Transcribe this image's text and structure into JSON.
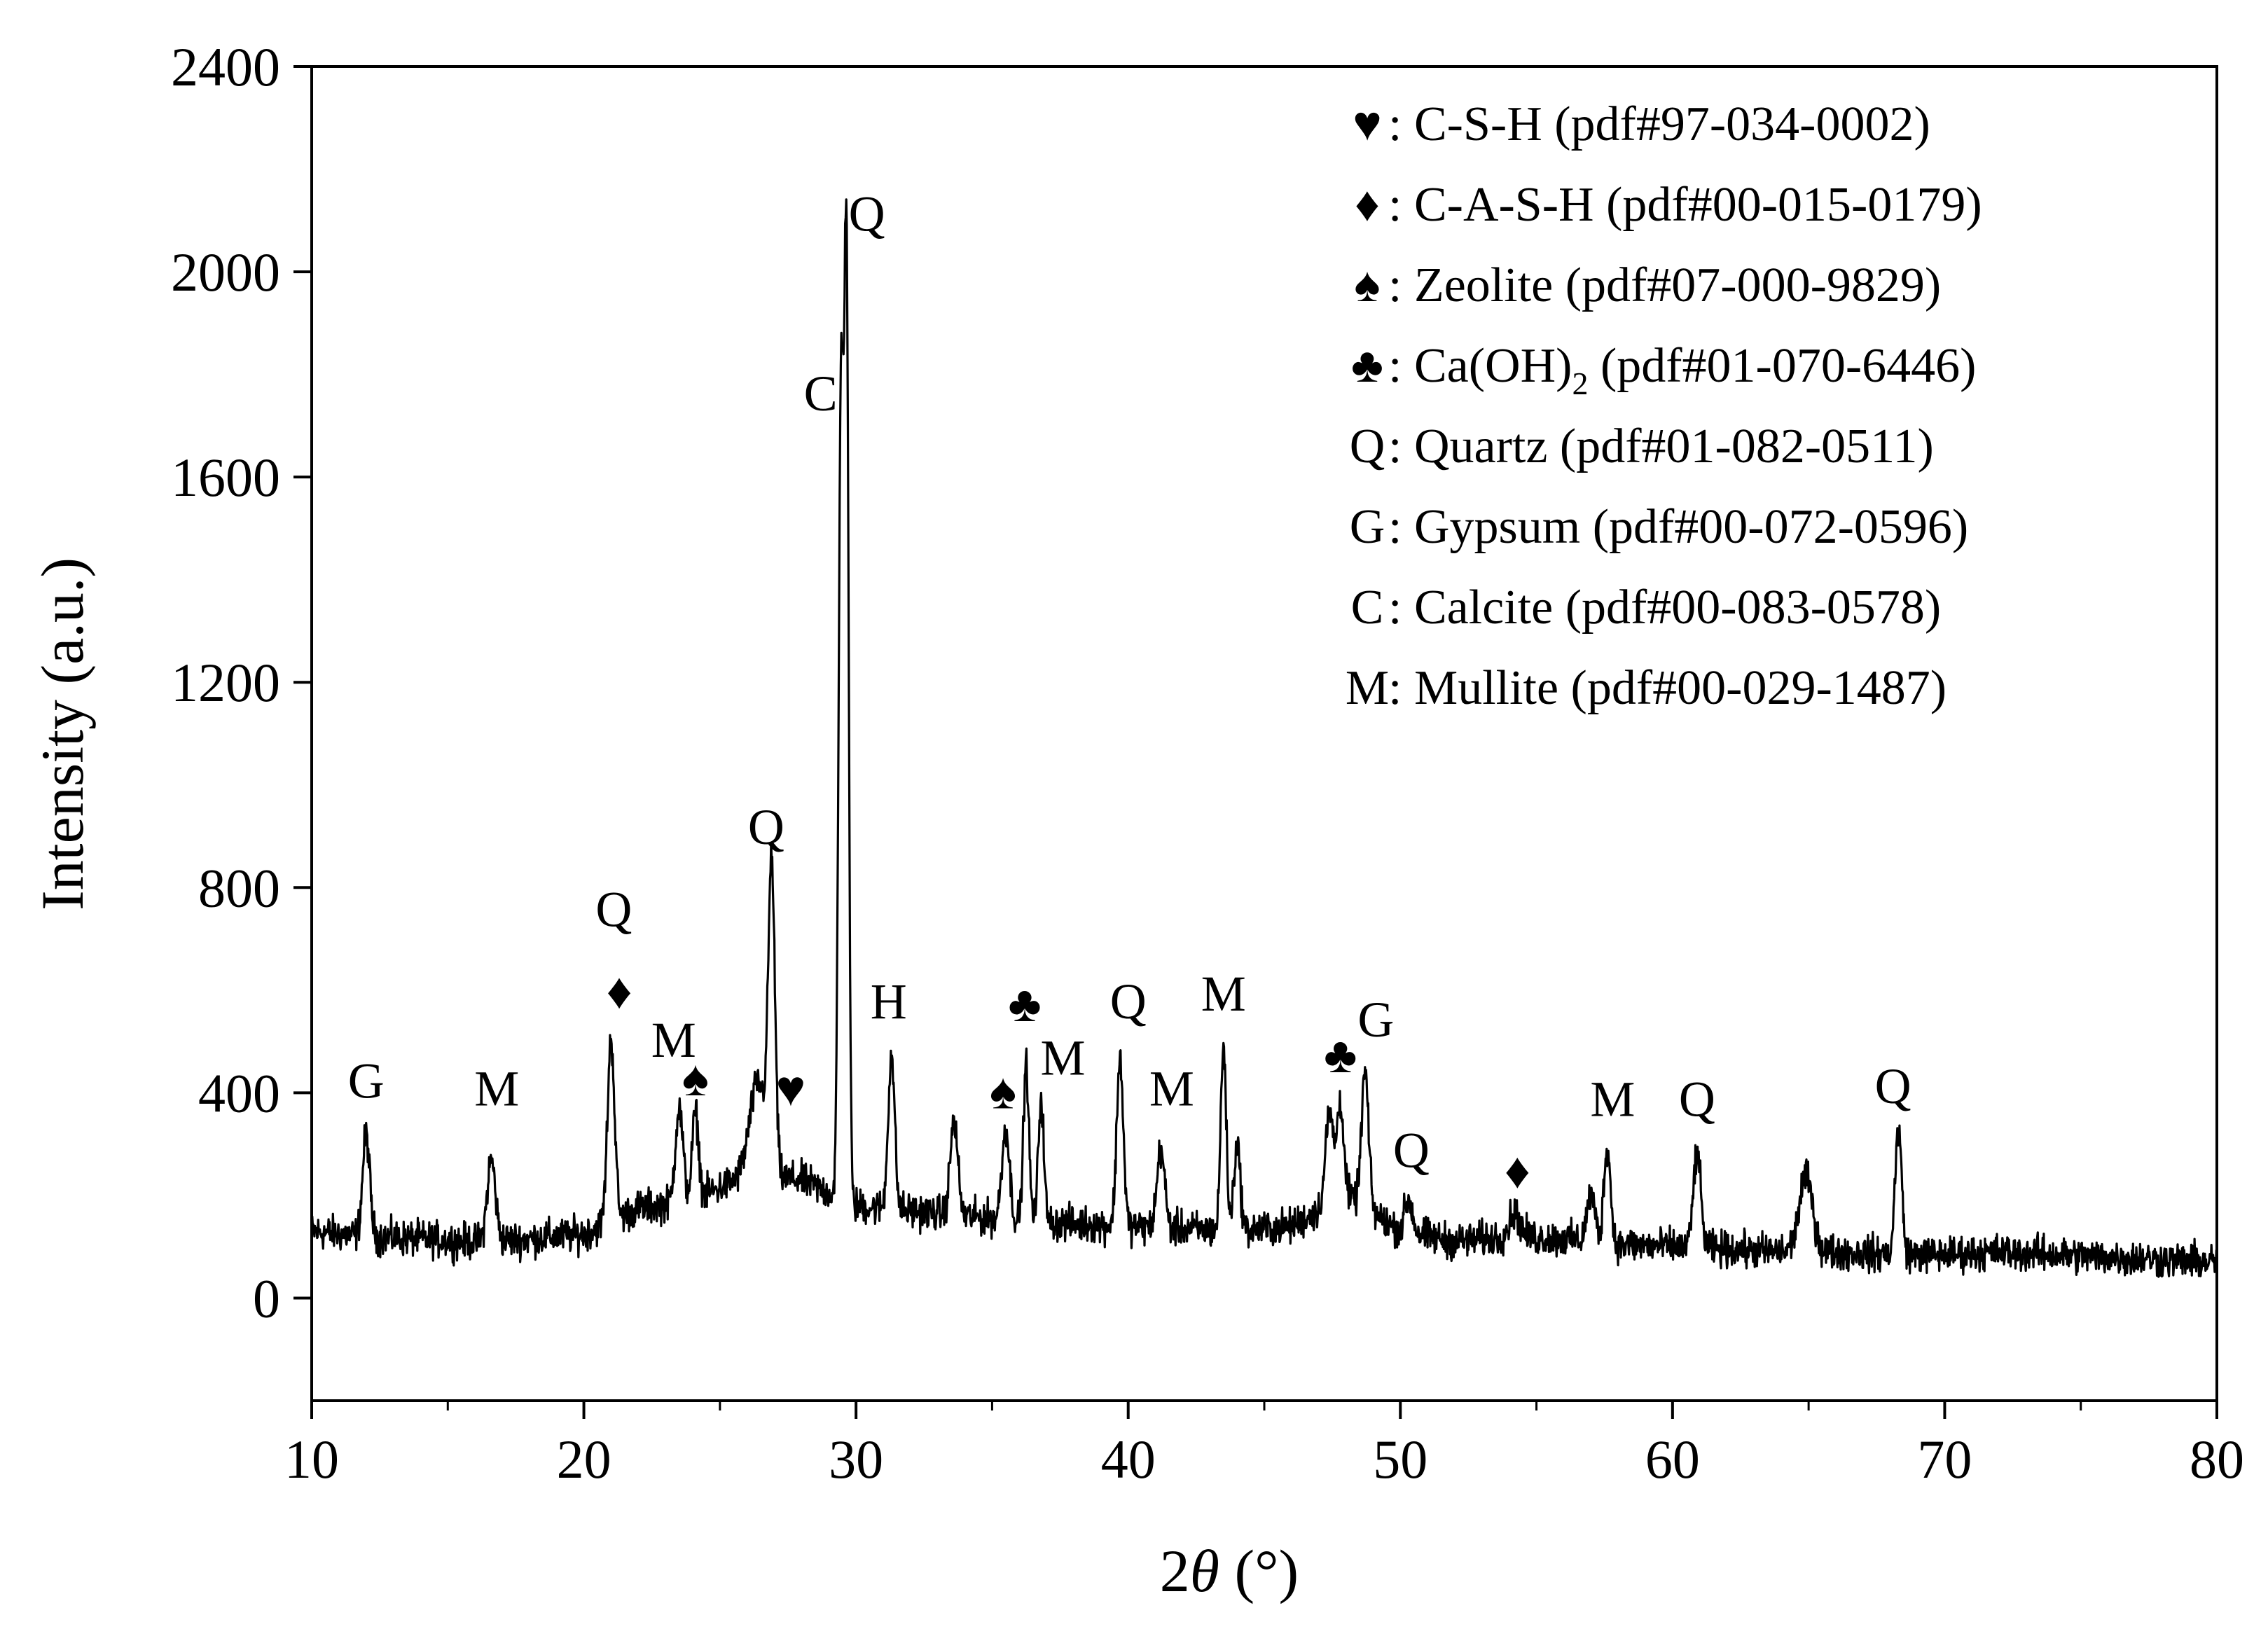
{
  "chart_data": {
    "type": "line",
    "xlabel_prefix": "2",
    "xlabel_symbol": "θ",
    "xlabel_suffix": " (°)",
    "ylabel": "Intensity (a.u.)",
    "xlim": [
      10,
      80
    ],
    "ylim": [
      -200,
      2400
    ],
    "xticks": [
      10,
      20,
      30,
      40,
      50,
      60,
      70,
      80
    ],
    "yticks": [
      0,
      400,
      800,
      1200,
      1600,
      2000,
      2400
    ],
    "grid": false,
    "legend_position": "top-right",
    "color": "#000000",
    "baseline": {
      "x": [
        10,
        12,
        14,
        16,
        18,
        20,
        22,
        24,
        26,
        28,
        30,
        32,
        34,
        36,
        38,
        40,
        42,
        44,
        46,
        48,
        50,
        52,
        54,
        56,
        58,
        60,
        62,
        64,
        66,
        68,
        70,
        72,
        74,
        76,
        78,
        80
      ],
      "y": [
        130,
        120,
        115,
        110,
        115,
        125,
        175,
        190,
        240,
        230,
        180,
        170,
        160,
        150,
        145,
        140,
        135,
        130,
        140,
        200,
        130,
        110,
        120,
        115,
        105,
        100,
        95,
        90,
        90,
        85,
        85,
        90,
        85,
        80,
        75,
        70
      ]
    },
    "peaks": [
      {
        "x": 12.0,
        "y": 320,
        "w": 0.13
      },
      {
        "x": 16.6,
        "y": 270,
        "w": 0.15
      },
      {
        "x": 21.0,
        "y": 505,
        "w": 0.13
      },
      {
        "x": 23.5,
        "y": 370,
        "w": 0.14
      },
      {
        "x": 24.1,
        "y": 360,
        "w": 0.12
      },
      {
        "x": 26.4,
        "y": 420,
        "w": 0.3
      },
      {
        "x": 26.9,
        "y": 815,
        "w": 0.12
      },
      {
        "x": 29.45,
        "y": 1770,
        "w": 0.09
      },
      {
        "x": 29.65,
        "y": 1990,
        "w": 0.08
      },
      {
        "x": 31.3,
        "y": 475,
        "w": 0.12
      },
      {
        "x": 33.6,
        "y": 345,
        "w": 0.14
      },
      {
        "x": 35.5,
        "y": 330,
        "w": 0.14
      },
      {
        "x": 36.25,
        "y": 455,
        "w": 0.1
      },
      {
        "x": 36.8,
        "y": 390,
        "w": 0.1
      },
      {
        "x": 39.7,
        "y": 470,
        "w": 0.12
      },
      {
        "x": 41.2,
        "y": 290,
        "w": 0.14
      },
      {
        "x": 43.5,
        "y": 495,
        "w": 0.1
      },
      {
        "x": 44.0,
        "y": 300,
        "w": 0.12
      },
      {
        "x": 47.4,
        "y": 360,
        "w": 0.15
      },
      {
        "x": 47.8,
        "y": 380,
        "w": 0.12
      },
      {
        "x": 48.7,
        "y": 440,
        "w": 0.13
      },
      {
        "x": 50.3,
        "y": 190,
        "w": 0.15
      },
      {
        "x": 54.2,
        "y": 165,
        "w": 0.2
      },
      {
        "x": 57.0,
        "y": 200,
        "w": 0.15
      },
      {
        "x": 57.6,
        "y": 295,
        "w": 0.12
      },
      {
        "x": 60.9,
        "y": 280,
        "w": 0.14
      },
      {
        "x": 64.9,
        "y": 235,
        "w": 0.25
      },
      {
        "x": 68.3,
        "y": 330,
        "w": 0.12
      }
    ],
    "peak_labels": [
      {
        "text": "G",
        "x": 12.0,
        "y": 390
      },
      {
        "text": "M",
        "x": 16.8,
        "y": 375
      },
      {
        "text": "Q",
        "x": 21.1,
        "y": 725
      },
      {
        "text": "♦",
        "x": 21.3,
        "y": 565
      },
      {
        "text": "M",
        "x": 23.3,
        "y": 470
      },
      {
        "text": "♠",
        "x": 24.1,
        "y": 395
      },
      {
        "text": "Q",
        "x": 26.7,
        "y": 885
      },
      {
        "text": "♥",
        "x": 27.6,
        "y": 375
      },
      {
        "text": "C",
        "x": 28.7,
        "y": 1730
      },
      {
        "text": "Q",
        "x": 30.4,
        "y": 2080
      },
      {
        "text": "H",
        "x": 31.2,
        "y": 545
      },
      {
        "text": "♠",
        "x": 35.4,
        "y": 370
      },
      {
        "text": "♣",
        "x": 36.2,
        "y": 540
      },
      {
        "text": "M",
        "x": 37.6,
        "y": 435
      },
      {
        "text": "Q",
        "x": 40.0,
        "y": 545
      },
      {
        "text": "M",
        "x": 41.6,
        "y": 375
      },
      {
        "text": "M",
        "x": 43.5,
        "y": 560
      },
      {
        "text": "♣",
        "x": 47.8,
        "y": 440
      },
      {
        "text": "G",
        "x": 49.1,
        "y": 510
      },
      {
        "text": "Q",
        "x": 50.4,
        "y": 255
      },
      {
        "text": "♦",
        "x": 54.3,
        "y": 215
      },
      {
        "text": "M",
        "x": 57.8,
        "y": 355
      },
      {
        "text": "Q",
        "x": 60.9,
        "y": 355
      },
      {
        "text": "Q",
        "x": 68.1,
        "y": 380
      }
    ],
    "legend": [
      {
        "symbol": "♥",
        "text": ": C-S-H (pdf#97-034-0002)"
      },
      {
        "symbol": "♦",
        "text": ": C-A-S-H (pdf#00-015-0179)"
      },
      {
        "symbol": "♠",
        "text": ": Zeolite (pdf#07-000-9829)"
      },
      {
        "symbol": "♣",
        "text": ": Ca(OH)",
        "sub": "2",
        "after": " (pdf#01-070-6446)"
      },
      {
        "symbol": "Q",
        "text": ": Quartz (pdf#01-082-0511)"
      },
      {
        "symbol": "G",
        "text": ": Gypsum (pdf#00-072-0596)"
      },
      {
        "symbol": "C",
        "text": ": Calcite (pdf#00-083-0578)"
      },
      {
        "symbol": "M",
        "text": ": Mullite (pdf#00-029-1487)"
      }
    ]
  }
}
